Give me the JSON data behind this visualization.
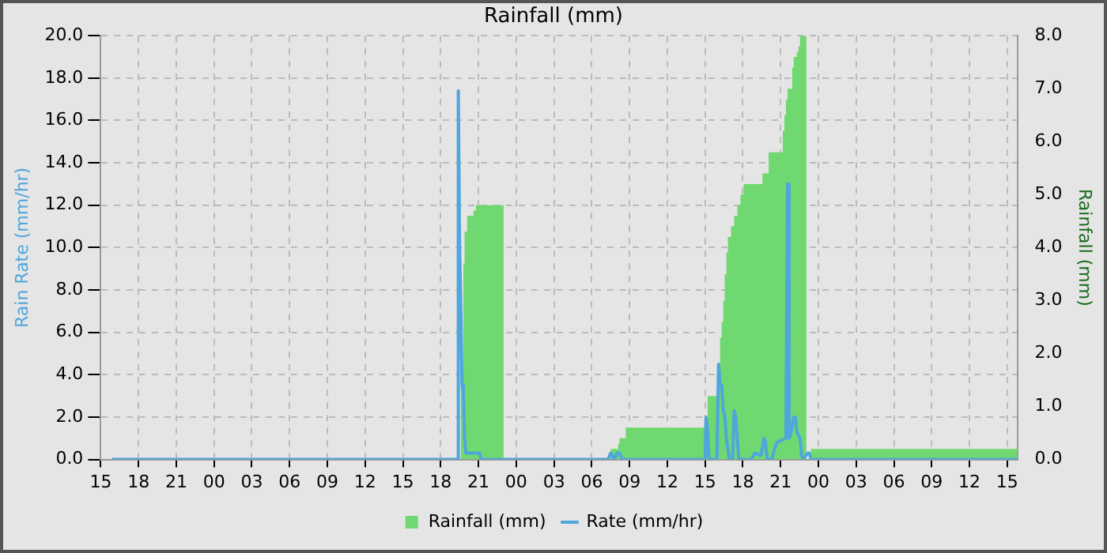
{
  "chart_data": {
    "type": "line",
    "title": "Rainfall (mm)",
    "ylabel": "Rain Rate (mm/hr)",
    "y2label": "Rainfall (mm)",
    "xlim": [
      15,
      87.8
    ],
    "xticks": [
      15,
      18,
      21,
      {
        "value": 24,
        "label": "00"
      },
      {
        "value": 27,
        "label": "03"
      },
      {
        "value": 30,
        "label": "06"
      },
      {
        "value": 33,
        "label": "09"
      },
      {
        "value": 36,
        "label": "12"
      },
      {
        "value": 39,
        "label": "15"
      },
      {
        "value": 42,
        "label": "18"
      },
      {
        "value": 45,
        "label": "21"
      },
      {
        "value": 48,
        "label": "00"
      },
      {
        "value": 51,
        "label": "03"
      },
      {
        "value": 54,
        "label": "06"
      },
      {
        "value": 57,
        "label": "09"
      },
      {
        "value": 60,
        "label": "12"
      },
      {
        "value": 63,
        "label": "15"
      },
      {
        "value": 66,
        "label": "18"
      },
      {
        "value": 69,
        "label": "21"
      },
      {
        "value": 72,
        "label": "00"
      },
      {
        "value": 75,
        "label": "03"
      },
      {
        "value": 78,
        "label": "06"
      },
      {
        "value": 81,
        "label": "09"
      },
      {
        "value": 84,
        "label": "12"
      },
      {
        "value": 87,
        "label": "15"
      }
    ],
    "ylim": [
      0,
      20
    ],
    "yticks": [
      {
        "value": 0,
        "label": "0.0"
      },
      {
        "value": 2,
        "label": "2.0"
      },
      {
        "value": 4,
        "label": "4.0"
      },
      {
        "value": 6,
        "label": "6.0"
      },
      {
        "value": 8,
        "label": "8.0"
      },
      {
        "value": 10,
        "label": "10.0"
      },
      {
        "value": 12,
        "label": "12.0"
      },
      {
        "value": 14,
        "label": "14.0"
      },
      {
        "value": 16,
        "label": "16.0"
      },
      {
        "value": 18,
        "label": "18.0"
      },
      {
        "value": 20,
        "label": "20.0"
      }
    ],
    "y2lim": [
      0,
      8
    ],
    "y2ticks": [
      {
        "value": 0,
        "label": "0.0"
      },
      {
        "value": 1,
        "label": "1.0"
      },
      {
        "value": 2,
        "label": "2.0"
      },
      {
        "value": 3,
        "label": "3.0"
      },
      {
        "value": 4,
        "label": "4.0"
      },
      {
        "value": 5,
        "label": "5.0"
      },
      {
        "value": 6,
        "label": "6.0"
      },
      {
        "value": 7,
        "label": "7.0"
      },
      {
        "value": 8,
        "label": "8.0"
      }
    ],
    "grid": true,
    "legend": "bottom",
    "series": [
      {
        "name": "Rainfall (mm)",
        "type": "area",
        "axis": "y2",
        "color": "#70d870",
        "x": [
          15,
          43.3,
          43.6,
          43.8,
          43.9,
          44.1,
          44.6,
          44.8,
          47.0,
          55.5,
          56.1,
          56.2,
          56.7,
          63.2,
          64.07,
          64.19,
          64.32,
          64.44,
          64.56,
          64.69,
          64.81,
          65.06,
          65.31,
          65.56,
          65.81,
          66.06,
          67.55,
          68.05,
          69.17,
          69.3,
          69.42,
          69.55,
          69.92,
          70.04,
          70.29,
          70.42,
          70.54,
          71.04,
          71.41,
          87.8
        ],
        "values": [
          0,
          0,
          1.7,
          3.7,
          4.3,
          4.6,
          4.7,
          4.8,
          0,
          0.2,
          0.3,
          0.4,
          0.6,
          1.2,
          1.8,
          2.3,
          2.6,
          3.0,
          3.5,
          3.9,
          4.2,
          4.4,
          4.6,
          4.8,
          5.0,
          5.2,
          5.4,
          5.8,
          6.2,
          6.5,
          6.8,
          7.0,
          7.4,
          7.6,
          7.7,
          7.8,
          8.0,
          0,
          0.2,
          0.2
        ]
      },
      {
        "name": "Rate (mm/hr)",
        "type": "line",
        "axis": "y",
        "color": "#4ea6dc",
        "x": [
          15.9,
          43.3,
          43.4,
          43.5,
          43.6,
          43.7,
          43.8,
          43.9,
          44.0,
          44.1,
          44.5,
          45.1,
          45.2,
          55.3,
          55.5,
          55.8,
          56.0,
          56.2,
          56.4,
          56.6,
          63.0,
          63.07,
          63.19,
          63.32,
          63.94,
          64.07,
          64.19,
          64.32,
          64.44,
          64.56,
          64.69,
          64.81,
          64.94,
          65.19,
          65.31,
          65.44,
          65.56,
          65.68,
          66.68,
          66.93,
          67.43,
          67.68,
          67.8,
          67.93,
          68.3,
          68.42,
          68.7,
          69.42,
          69.55,
          69.67,
          69.8,
          70.04,
          70.17,
          70.29,
          70.54,
          70.67,
          70.79,
          71.16,
          71.29,
          71.41,
          87.8
        ],
        "values": [
          0,
          0,
          17.4,
          10.2,
          7.2,
          3.5,
          3.2,
          1.0,
          0.3,
          0.3,
          0.3,
          0.3,
          0,
          0,
          0.3,
          0,
          0.3,
          0.3,
          0,
          0,
          0,
          2.0,
          1.5,
          0,
          0,
          4.5,
          3.5,
          3.5,
          2.3,
          2.1,
          1.0,
          0.5,
          0,
          0,
          2.3,
          2.0,
          1.0,
          0,
          0,
          0.3,
          0.2,
          1.0,
          0.8,
          0,
          0,
          0.3,
          0.8,
          1.0,
          13.0,
          1.0,
          1.2,
          2.0,
          2.0,
          1.3,
          1.0,
          0.2,
          0,
          0.3,
          0.3,
          0,
          0
        ]
      }
    ]
  }
}
